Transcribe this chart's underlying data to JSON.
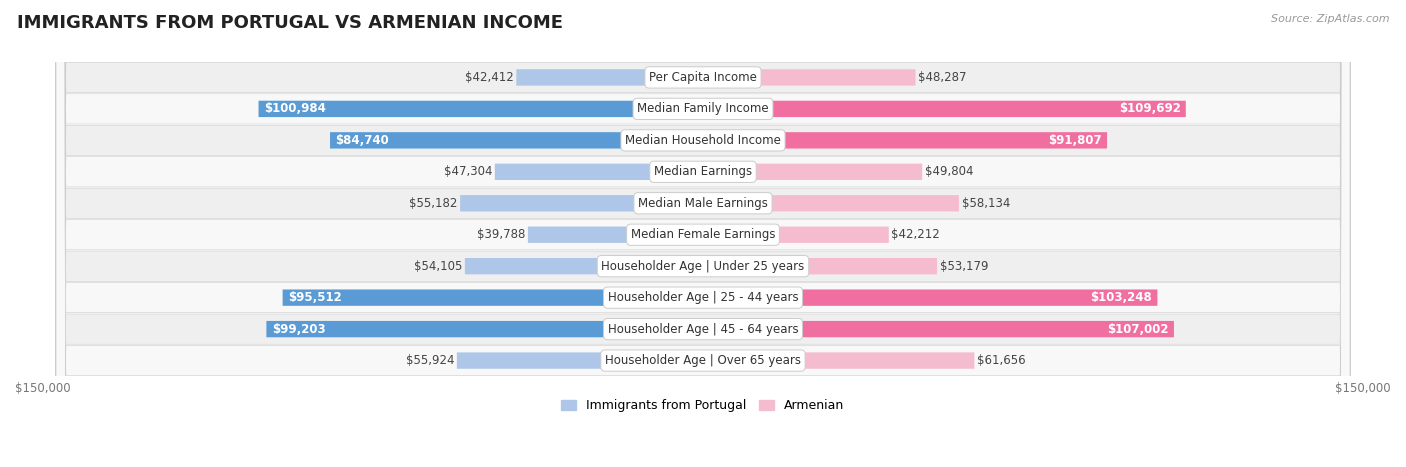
{
  "title": "IMMIGRANTS FROM PORTUGAL VS ARMENIAN INCOME",
  "source": "Source: ZipAtlas.com",
  "categories": [
    "Per Capita Income",
    "Median Family Income",
    "Median Household Income",
    "Median Earnings",
    "Median Male Earnings",
    "Median Female Earnings",
    "Householder Age | Under 25 years",
    "Householder Age | 25 - 44 years",
    "Householder Age | 45 - 64 years",
    "Householder Age | Over 65 years"
  ],
  "portugal_values": [
    42412,
    100984,
    84740,
    47304,
    55182,
    39788,
    54105,
    95512,
    99203,
    55924
  ],
  "armenian_values": [
    48287,
    109692,
    91807,
    49804,
    58134,
    42212,
    53179,
    103248,
    107002,
    61656
  ],
  "portugal_labels": [
    "$42,412",
    "$100,984",
    "$84,740",
    "$47,304",
    "$55,182",
    "$39,788",
    "$54,105",
    "$95,512",
    "$99,203",
    "$55,924"
  ],
  "armenian_labels": [
    "$48,287",
    "$109,692",
    "$91,807",
    "$49,804",
    "$58,134",
    "$42,212",
    "$53,179",
    "$103,248",
    "$107,002",
    "$61,656"
  ],
  "portugal_color_light": "#aec6e8",
  "portugal_color_dark": "#5b9bd5",
  "armenian_color_light": "#f5bcd0",
  "armenian_color_dark": "#f06fa0",
  "max_value": 150000,
  "bar_height": 0.52,
  "row_bg_light": "#efefef",
  "row_bg_dark": "#e0e0e8",
  "title_fontsize": 13,
  "cat_fontsize": 8.5,
  "val_fontsize": 8.5,
  "axis_fontsize": 8.5,
  "source_fontsize": 8,
  "legend_fontsize": 9,
  "portugal_inside": [
    false,
    true,
    true,
    false,
    false,
    false,
    false,
    true,
    true,
    false
  ],
  "armenian_inside": [
    false,
    true,
    true,
    false,
    false,
    false,
    false,
    true,
    true,
    false
  ]
}
